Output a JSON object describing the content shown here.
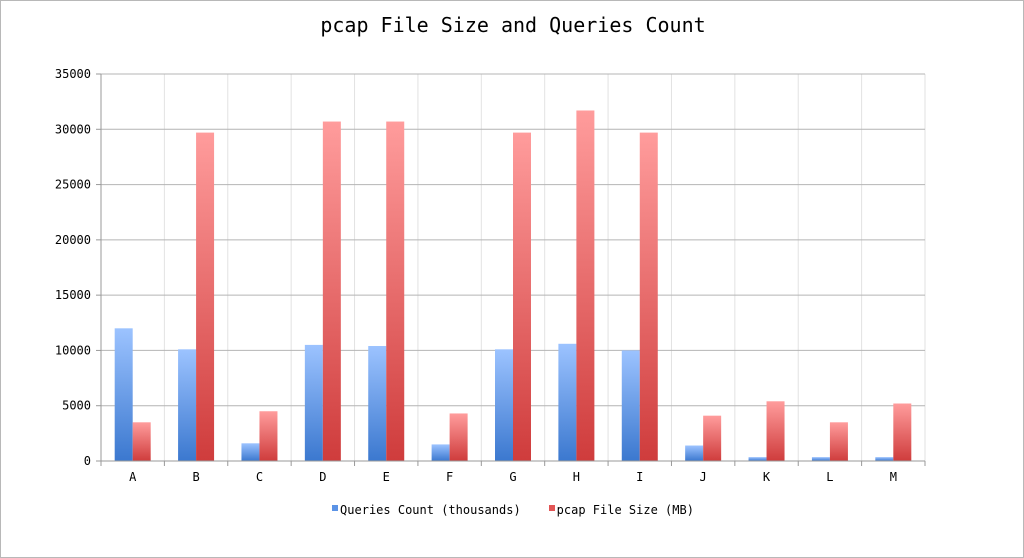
{
  "chart_data": {
    "type": "bar",
    "title": "pcap File Size and Queries Count",
    "xlabel": "",
    "ylabel": "",
    "ylim": [
      0,
      35000
    ],
    "yticks": [
      0,
      5000,
      10000,
      15000,
      20000,
      25000,
      30000,
      35000
    ],
    "grid": {
      "horizontal": true,
      "vertical": true
    },
    "legend_position": "bottom",
    "categories": [
      "A",
      "B",
      "C",
      "D",
      "E",
      "F",
      "G",
      "H",
      "I",
      "J",
      "K",
      "L",
      "M"
    ],
    "series": [
      {
        "name": "Queries Count (thousands)",
        "color": "#4a86d8",
        "values": [
          12000,
          10100,
          1600,
          10500,
          10400,
          1500,
          10100,
          10600,
          10000,
          1400,
          350,
          350,
          350
        ]
      },
      {
        "name": "pcap File Size (MB)",
        "color": "#d94848",
        "values": [
          3500,
          29700,
          4500,
          30700,
          30700,
          4300,
          29700,
          31700,
          29700,
          4100,
          5400,
          3500,
          5200
        ]
      }
    ]
  },
  "legend": {
    "items": [
      {
        "label": "Queries Count (thousands)",
        "color": "#4a86d8"
      },
      {
        "label": "pcap File Size (MB)",
        "color": "#d94848"
      }
    ]
  }
}
